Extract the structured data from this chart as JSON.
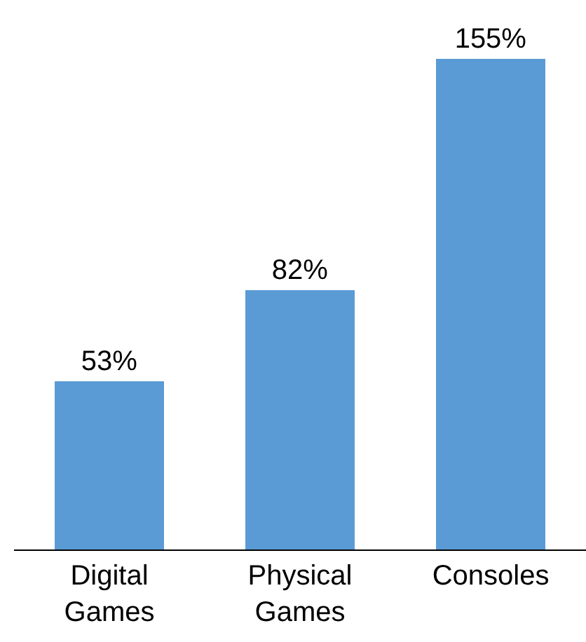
{
  "chart_data": {
    "type": "bar",
    "categories": [
      "Digital Games",
      "Physical Games",
      "Consoles"
    ],
    "values": [
      53,
      82,
      155
    ],
    "value_labels": [
      "53%",
      "82%",
      "155%"
    ],
    "color": "#5b9bd5"
  }
}
